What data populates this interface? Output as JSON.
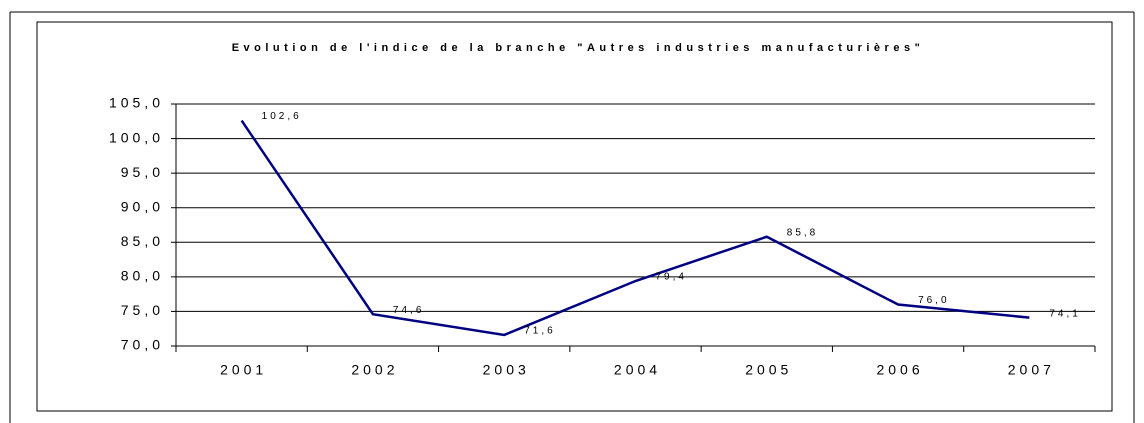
{
  "chart_data": {
    "type": "line",
    "title": "Evolution de l'indice de la branche \"Autres industries manufacturières\"",
    "categories": [
      "2001",
      "2002",
      "2003",
      "2004",
      "2005",
      "2006",
      "2007"
    ],
    "series": [
      {
        "color": "#000080",
        "values": [
          102.6,
          74.6,
          71.6,
          79.4,
          85.8,
          76.0,
          74.1
        ],
        "value_labels": [
          "102,6",
          "74,6",
          "71,6",
          "79,4",
          "85,8",
          "76,0",
          "74,1"
        ]
      }
    ],
    "ylim": [
      70,
      105
    ],
    "yticks": [
      {
        "value": 70,
        "label": "70,0"
      },
      {
        "value": 75,
        "label": "75,0"
      },
      {
        "value": 80,
        "label": "80,0"
      },
      {
        "value": 85,
        "label": "85,0"
      },
      {
        "value": 90,
        "label": "90,0"
      },
      {
        "value": 95,
        "label": "95,0"
      },
      {
        "value": 100,
        "label": "100,0"
      },
      {
        "value": 105,
        "label": "105,0"
      }
    ],
    "grid": true
  }
}
